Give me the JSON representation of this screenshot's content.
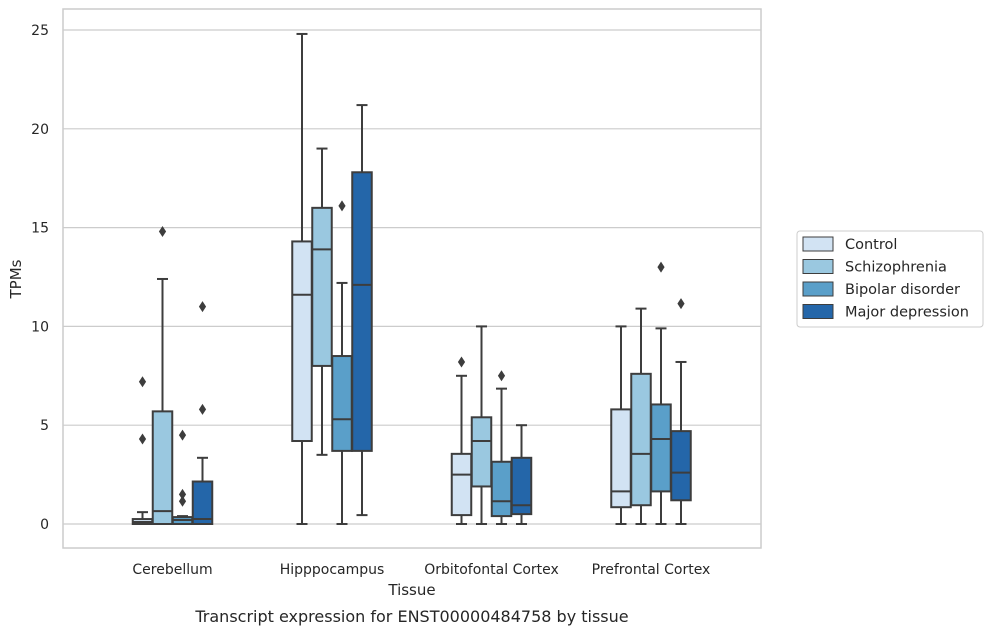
{
  "chart_data": {
    "type": "boxplot",
    "title": "Transcript expression for ENST00000484758 by tissue",
    "xlabel": "Tissue",
    "ylabel": "TPMs",
    "ylim": [
      -1.2,
      26
    ],
    "yticks": [
      0,
      5,
      10,
      15,
      20,
      25
    ],
    "grid": true,
    "legend_position": "right",
    "categories": [
      "Cerebellum",
      "Hipppocampus",
      "Orbitofontal Cortex",
      "Prefrontal Cortex"
    ],
    "series": [
      {
        "name": "Control",
        "color": "#d2e3f3",
        "boxes": [
          {
            "whislo": 0.0,
            "q1": 0.0,
            "med": 0.1,
            "q3": 0.25,
            "whishi": 0.6,
            "fliers": [
              7.2,
              4.3
            ]
          },
          {
            "whislo": 0.0,
            "q1": 4.2,
            "med": 11.6,
            "q3": 14.3,
            "whishi": 24.8,
            "fliers": []
          },
          {
            "whislo": 0.0,
            "q1": 0.45,
            "med": 2.5,
            "q3": 3.55,
            "whishi": 7.5,
            "fliers": [
              8.2
            ]
          },
          {
            "whislo": 0.0,
            "q1": 0.85,
            "med": 1.65,
            "q3": 5.8,
            "whishi": 10.0,
            "fliers": []
          }
        ]
      },
      {
        "name": "Schizophrenia",
        "color": "#9ac8e0",
        "boxes": [
          {
            "whislo": 0.0,
            "q1": 0.0,
            "med": 0.65,
            "q3": 5.7,
            "whishi": 12.4,
            "fliers": [
              14.8
            ]
          },
          {
            "whislo": 3.5,
            "q1": 8.0,
            "med": 13.9,
            "q3": 16.0,
            "whishi": 19.0,
            "fliers": []
          },
          {
            "whislo": 0.0,
            "q1": 1.9,
            "med": 4.2,
            "q3": 5.4,
            "whishi": 10.0,
            "fliers": []
          },
          {
            "whislo": 0.0,
            "q1": 0.95,
            "med": 3.55,
            "q3": 7.6,
            "whishi": 10.9,
            "fliers": []
          }
        ]
      },
      {
        "name": "Bipolar disorder",
        "color": "#5a9fc9",
        "boxes": [
          {
            "whislo": 0.0,
            "q1": 0.0,
            "med": 0.2,
            "q3": 0.35,
            "whishi": 0.4,
            "fliers": [
              4.5,
              1.5,
              1.15
            ]
          },
          {
            "whislo": 0.0,
            "q1": 3.7,
            "med": 5.3,
            "q3": 8.5,
            "whishi": 12.2,
            "fliers": [
              16.1
            ]
          },
          {
            "whislo": 0.0,
            "q1": 0.4,
            "med": 1.15,
            "q3": 3.15,
            "whishi": 6.85,
            "fliers": [
              7.5
            ]
          },
          {
            "whislo": 0.0,
            "q1": 1.65,
            "med": 4.3,
            "q3": 6.05,
            "whishi": 9.9,
            "fliers": [
              13.0
            ]
          }
        ]
      },
      {
        "name": "Major depression",
        "color": "#2466a9",
        "boxes": [
          {
            "whislo": 0.0,
            "q1": 0.0,
            "med": 0.25,
            "q3": 2.15,
            "whishi": 3.35,
            "fliers": [
              11.0,
              5.8
            ]
          },
          {
            "whislo": 0.45,
            "q1": 3.7,
            "med": 12.1,
            "q3": 17.8,
            "whishi": 21.2,
            "fliers": []
          },
          {
            "whislo": 0.0,
            "q1": 0.5,
            "med": 0.95,
            "q3": 3.35,
            "whishi": 5.0,
            "fliers": []
          },
          {
            "whislo": 0.0,
            "q1": 1.2,
            "med": 2.6,
            "q3": 4.7,
            "whishi": 8.2,
            "fliers": [
              11.15
            ]
          }
        ]
      }
    ]
  }
}
